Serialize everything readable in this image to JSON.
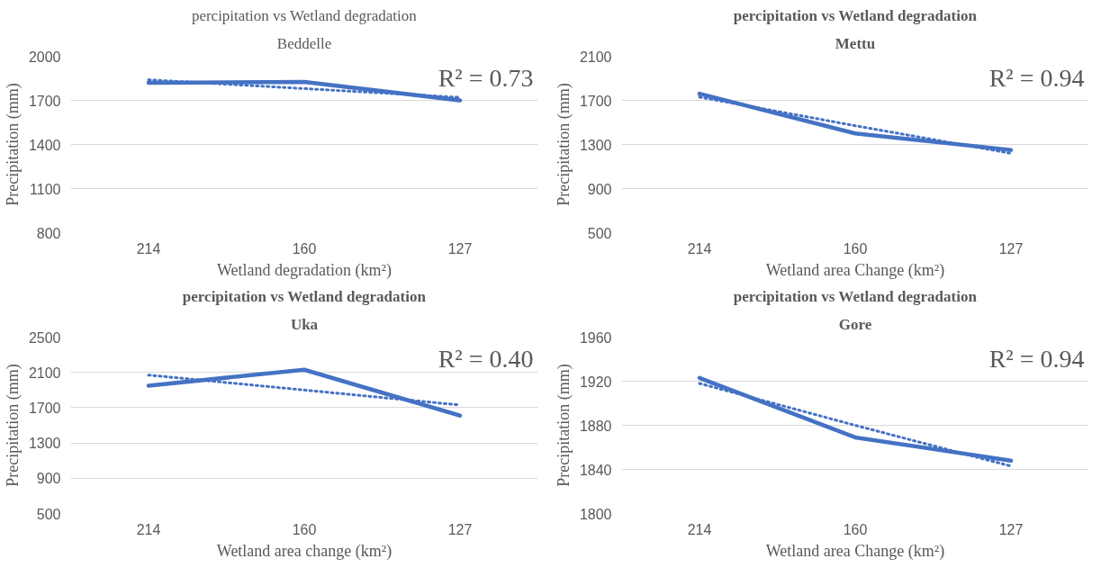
{
  "chart_data": [
    {
      "type": "line",
      "title": "percipitation vs Wetland degradation",
      "subtitle": "Beddelle",
      "xlabel": "Wetland degradation (km²)",
      "ylabel": "Precipitation (mm)",
      "categories": [
        "214",
        "160",
        "127"
      ],
      "ylim": [
        800,
        2000
      ],
      "yticks": [
        800,
        1100,
        1400,
        1700,
        2000
      ],
      "grid": "y",
      "annotations": [
        "R² = 0.73"
      ],
      "series": [
        {
          "color": "#4472c4",
          "line_style": "solid",
          "values": [
            1820,
            1825,
            1700
          ]
        },
        {
          "color": "#4472c4",
          "line_style": "dotted",
          "values": [
            1840,
            1780,
            1720
          ]
        }
      ]
    },
    {
      "type": "line",
      "title": "percipitation vs Wetland degradation",
      "subtitle": "Mettu",
      "xlabel": "Wetland area Change (km²)",
      "ylabel": "Precipitation (mm)",
      "categories": [
        "214",
        "160",
        "127"
      ],
      "ylim": [
        500,
        2100
      ],
      "yticks": [
        500,
        900,
        1300,
        1700,
        2100
      ],
      "grid": "y",
      "annotations": [
        "R² = 0.94"
      ],
      "series": [
        {
          "color": "#4472c4",
          "line_style": "solid",
          "values": [
            1760,
            1400,
            1250
          ]
        },
        {
          "color": "#4472c4",
          "line_style": "dotted",
          "values": [
            1730,
            1470,
            1220
          ]
        }
      ]
    },
    {
      "type": "line",
      "title": "percipitation vs Wetland degradation",
      "subtitle": "Uka",
      "xlabel": "Wetland area change (km²)",
      "ylabel": "Precipitation (mm)",
      "categories": [
        "214",
        "160",
        "127"
      ],
      "ylim": [
        500,
        2500
      ],
      "yticks": [
        500,
        900,
        1300,
        1700,
        2100,
        2500
      ],
      "grid": "y",
      "annotations": [
        "R² = 0.40"
      ],
      "series": [
        {
          "color": "#4472c4",
          "line_style": "solid",
          "values": [
            1950,
            2130,
            1610
          ]
        },
        {
          "color": "#4472c4",
          "line_style": "dotted",
          "values": [
            2070,
            1900,
            1730
          ]
        }
      ]
    },
    {
      "type": "line",
      "title": "percipitation vs Wetland degradation",
      "subtitle": "Gore",
      "xlabel": "Wetland area Change (km²)",
      "ylabel": "Precipitation (mm)",
      "categories": [
        "214",
        "160",
        "127"
      ],
      "ylim": [
        1800,
        1960
      ],
      "yticks": [
        1800,
        1840,
        1880,
        1920,
        1960
      ],
      "grid": "y",
      "annotations": [
        "R² = 0.94"
      ],
      "series": [
        {
          "color": "#4472c4",
          "line_style": "solid",
          "values": [
            1923,
            1869,
            1848
          ]
        },
        {
          "color": "#4472c4",
          "line_style": "dotted",
          "values": [
            1918,
            1880,
            1843
          ]
        }
      ]
    }
  ]
}
